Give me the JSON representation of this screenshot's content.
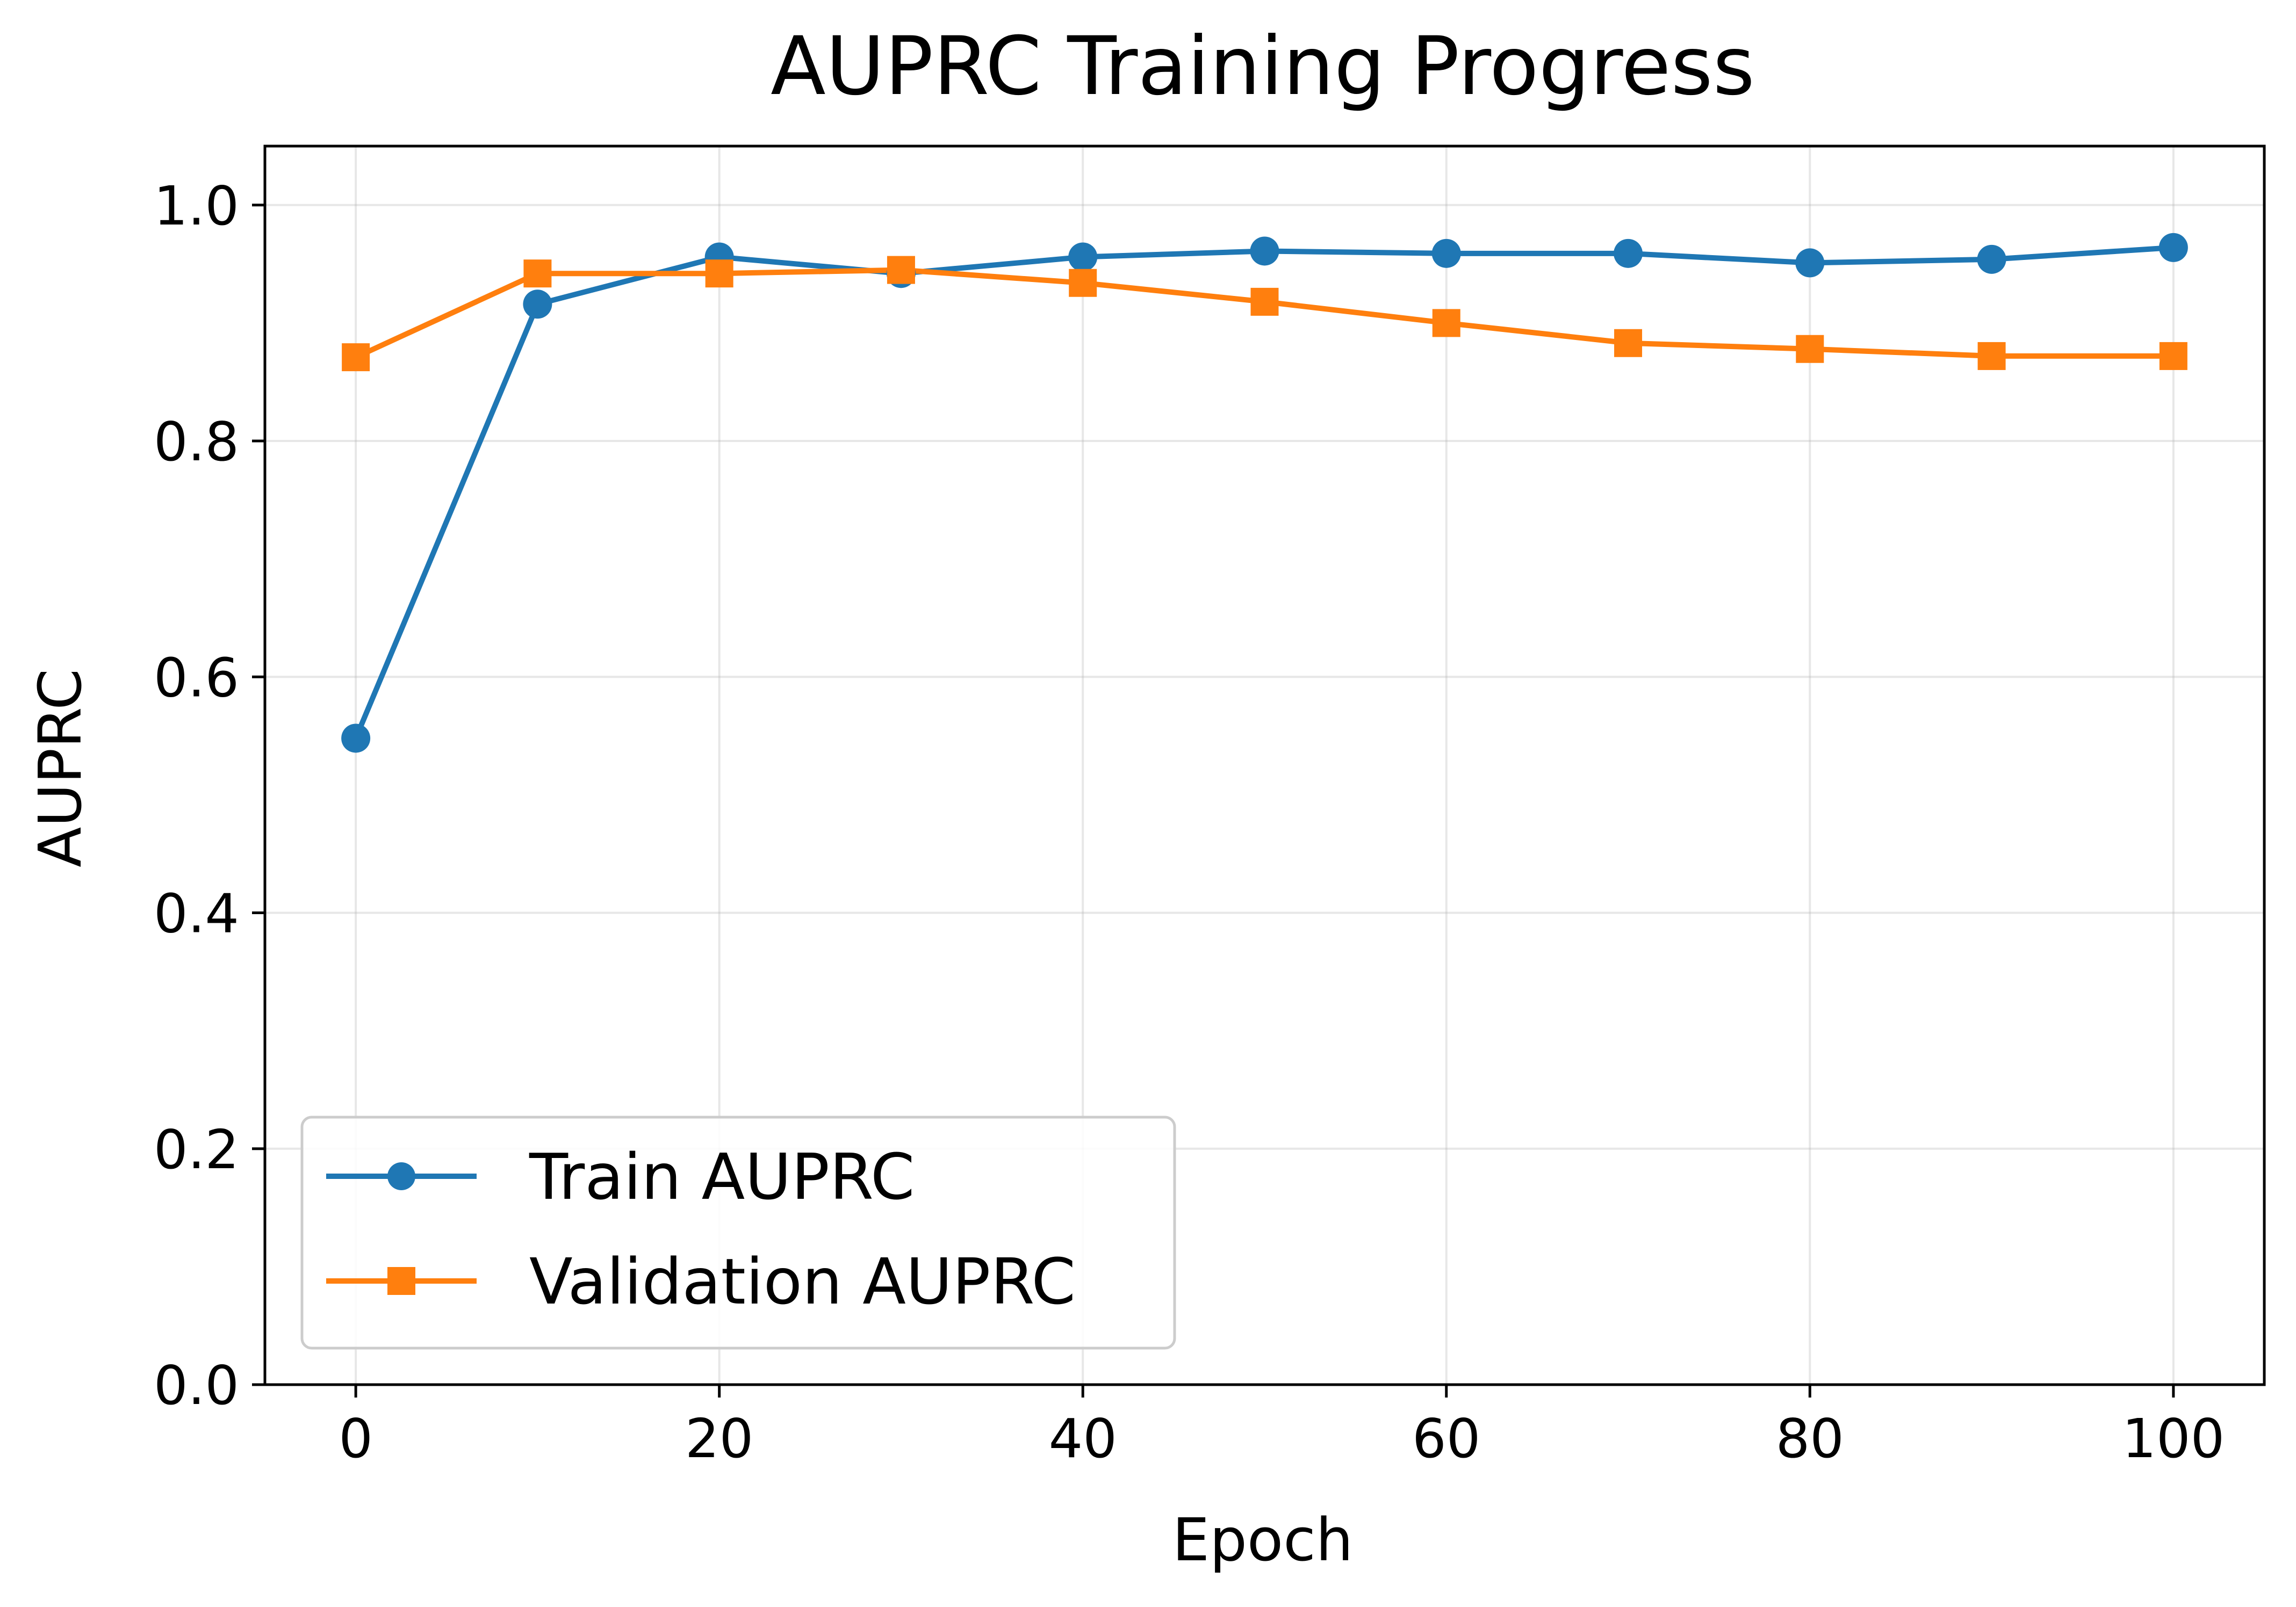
{
  "chart_data": {
    "type": "line",
    "title": "AUPRC Training Progress",
    "xlabel": "Epoch",
    "ylabel": "AUPRC",
    "xlim": [
      -5,
      105
    ],
    "ylim": [
      0.0,
      1.05
    ],
    "xticks": [
      0,
      20,
      40,
      60,
      80,
      100
    ],
    "xtick_labels": [
      "0",
      "20",
      "40",
      "60",
      "80",
      "100"
    ],
    "yticks": [
      0.0,
      0.2,
      0.4,
      0.6,
      0.8,
      1.0
    ],
    "ytick_labels": [
      "0.0",
      "0.2",
      "0.4",
      "0.6",
      "0.8",
      "1.0"
    ],
    "grid": true,
    "legend_position": "lower-left",
    "x": [
      0,
      10,
      20,
      30,
      40,
      50,
      60,
      70,
      80,
      90,
      100
    ],
    "series": [
      {
        "name": "Train AUPRC",
        "color": "#1f77b4",
        "marker": "circle",
        "values": [
          0.548,
          0.916,
          0.956,
          0.942,
          0.956,
          0.961,
          0.959,
          0.959,
          0.951,
          0.954,
          0.964
        ]
      },
      {
        "name": "Validation AUPRC",
        "color": "#ff7f0e",
        "marker": "square",
        "values": [
          0.871,
          0.942,
          0.942,
          0.945,
          0.934,
          0.918,
          0.9,
          0.883,
          0.878,
          0.872,
          0.872
        ]
      }
    ]
  }
}
